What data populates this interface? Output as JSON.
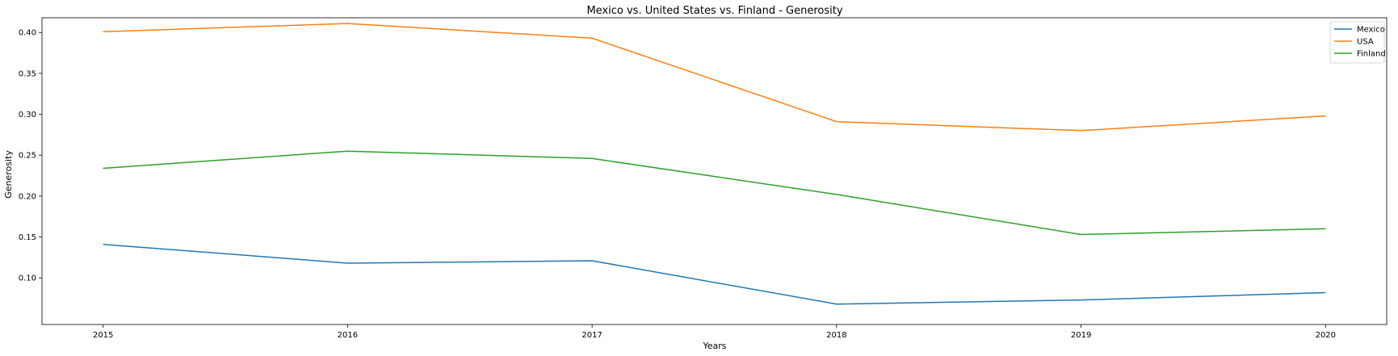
{
  "chart_data": {
    "type": "line",
    "title": "Mexico vs. United States vs. Finland - Generosity",
    "xlabel": "Years",
    "ylabel": "Generosity",
    "x": [
      2015,
      2016,
      2017,
      2018,
      2019,
      2020
    ],
    "x_tick_labels": [
      "2015",
      "2016",
      "2017",
      "2018",
      "2019",
      "2020"
    ],
    "xlim": [
      2014.75,
      2020.25
    ],
    "ylim": [
      0.043,
      0.418
    ],
    "y_ticks": [
      0.1,
      0.15,
      0.2,
      0.25,
      0.3,
      0.35,
      0.4
    ],
    "y_tick_labels": [
      "0.10",
      "0.15",
      "0.20",
      "0.25",
      "0.30",
      "0.35",
      "0.40"
    ],
    "grid": false,
    "legend_position": "top-right",
    "series": [
      {
        "name": "Mexico",
        "color": "#1f77b4",
        "values": [
          0.141,
          0.118,
          0.121,
          0.068,
          0.073,
          0.082
        ]
      },
      {
        "name": "USA",
        "color": "#ff7f0e",
        "values": [
          0.401,
          0.411,
          0.393,
          0.291,
          0.28,
          0.298
        ]
      },
      {
        "name": "Finland",
        "color": "#2ca02c",
        "values": [
          0.234,
          0.255,
          0.246,
          0.202,
          0.153,
          0.16
        ]
      }
    ]
  }
}
